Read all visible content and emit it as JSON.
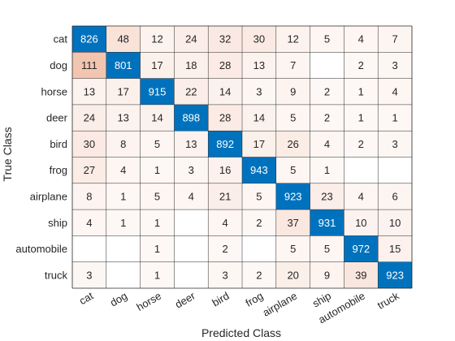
{
  "chart_data": {
    "type": "heatmap",
    "title": "",
    "xlabel": "Predicted Class",
    "ylabel": "True Class",
    "rows": [
      "cat",
      "dog",
      "horse",
      "deer",
      "bird",
      "frog",
      "airplane",
      "ship",
      "automobile",
      "truck"
    ],
    "columns": [
      "cat",
      "dog",
      "horse",
      "deer",
      "bird",
      "frog",
      "airplane",
      "ship",
      "automobile",
      "truck"
    ],
    "values": [
      [
        826,
        48,
        12,
        24,
        32,
        30,
        12,
        5,
        4,
        7
      ],
      [
        111,
        801,
        17,
        18,
        28,
        13,
        7,
        null,
        2,
        3
      ],
      [
        13,
        17,
        915,
        22,
        14,
        3,
        9,
        2,
        1,
        4
      ],
      [
        24,
        13,
        14,
        898,
        28,
        14,
        5,
        2,
        1,
        1
      ],
      [
        30,
        8,
        5,
        13,
        892,
        17,
        26,
        4,
        2,
        3
      ],
      [
        27,
        4,
        1,
        3,
        16,
        943,
        5,
        1,
        null,
        null
      ],
      [
        8,
        1,
        5,
        4,
        21,
        5,
        923,
        23,
        4,
        6
      ],
      [
        4,
        1,
        1,
        null,
        4,
        2,
        37,
        931,
        10,
        10
      ],
      [
        null,
        null,
        1,
        null,
        2,
        null,
        5,
        5,
        972,
        15
      ],
      [
        3,
        null,
        1,
        null,
        3,
        2,
        20,
        9,
        39,
        923
      ]
    ],
    "colors": {
      "diagonal": "#0072bd",
      "diagonal_text": "#ffffff",
      "offdiag_base": "#d95319",
      "offdiag_text": "#262626",
      "grid": "#262626"
    }
  }
}
